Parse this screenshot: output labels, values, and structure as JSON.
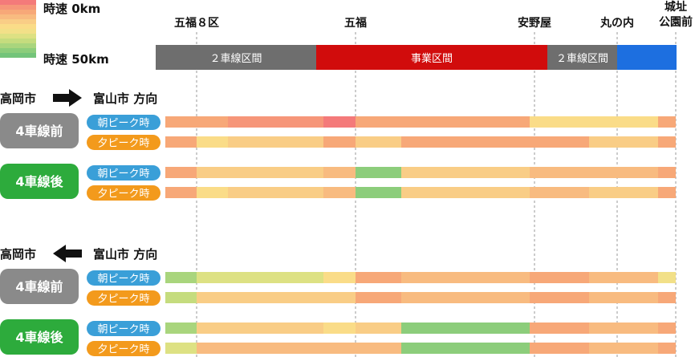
{
  "legend": {
    "top_label": "時速 0km",
    "bottom_label": "時速 50km",
    "colors": [
      "#f47a7a",
      "#f69679",
      "#f7a878",
      "#f8bb80",
      "#f9cd86",
      "#fadc88",
      "#f2e088",
      "#dde183",
      "#c5dc7e",
      "#a9d57d",
      "#8ccd7b",
      "#73c47a"
    ]
  },
  "stations": [
    {
      "label": "五福８区",
      "x_pos": 245
    },
    {
      "label": "五福",
      "x_pos": 443
    },
    {
      "label": "安野屋",
      "x_pos": 666
    },
    {
      "label": "丸の内",
      "x_pos": 769
    },
    {
      "label": "城址\n公園前",
      "x_pos": 842
    }
  ],
  "track_sections": [
    {
      "label": "２車線区間",
      "color": "#6e6e6e",
      "from": 0,
      "to": 200
    },
    {
      "label": "事業区間",
      "color": "#d10c0c",
      "from": 200,
      "to": 488
    },
    {
      "label": "２車線区間",
      "color": "#6e6e6e",
      "from": 488,
      "to": 575
    },
    {
      "label": "",
      "color": "#1d6fe0",
      "from": 575,
      "to": 649
    }
  ],
  "sections": [
    {
      "direction_from": "高岡市",
      "direction_to": "富山市 方向",
      "arrow": "right-arrow",
      "groups": [
        {
          "label": "4車線前",
          "color": "#8a8a8a",
          "rows": [
            {
              "label": "朝ピーク時",
              "color": "#3a9fd8",
              "speeds": [
                {
                  "from": 0,
                  "to": 78,
                  "color": "#f7a878"
                },
                {
                  "from": 78,
                  "to": 197,
                  "color": "#f69679"
                },
                {
                  "from": 197,
                  "to": 237,
                  "color": "#f47a7a"
                },
                {
                  "from": 237,
                  "to": 454,
                  "color": "#f7a878"
                },
                {
                  "from": 454,
                  "to": 528,
                  "color": "#fadc88"
                },
                {
                  "from": 528,
                  "to": 614,
                  "color": "#fadc88"
                },
                {
                  "from": 614,
                  "to": 636,
                  "color": "#f7a878"
                }
              ]
            },
            {
              "label": "夕ピーク時",
              "color": "#f39a1c",
              "speeds": [
                {
                  "from": 0,
                  "to": 39,
                  "color": "#f7a878"
                },
                {
                  "from": 39,
                  "to": 78,
                  "color": "#fadc88"
                },
                {
                  "from": 78,
                  "to": 197,
                  "color": "#f9cd86"
                },
                {
                  "from": 197,
                  "to": 237,
                  "color": "#f7a878"
                },
                {
                  "from": 237,
                  "to": 294,
                  "color": "#f9cd86"
                },
                {
                  "from": 294,
                  "to": 454,
                  "color": "#f7a878"
                },
                {
                  "from": 454,
                  "to": 528,
                  "color": "#f7a878"
                },
                {
                  "from": 528,
                  "to": 614,
                  "color": "#f9cd86"
                },
                {
                  "from": 614,
                  "to": 636,
                  "color": "#f7a878"
                }
              ]
            }
          ]
        },
        {
          "label": "4車線後",
          "color": "#2dab3c",
          "rows": [
            {
              "label": "朝ピーク時",
              "color": "#3a9fd8",
              "speeds": [
                {
                  "from": 0,
                  "to": 39,
                  "color": "#f7a878"
                },
                {
                  "from": 39,
                  "to": 197,
                  "color": "#f9cd86"
                },
                {
                  "from": 197,
                  "to": 237,
                  "color": "#f8bb80"
                },
                {
                  "from": 237,
                  "to": 294,
                  "color": "#8ccd7b"
                },
                {
                  "from": 294,
                  "to": 454,
                  "color": "#f9cd86"
                },
                {
                  "from": 454,
                  "to": 528,
                  "color": "#f8bb80"
                },
                {
                  "from": 528,
                  "to": 614,
                  "color": "#f8bb80"
                },
                {
                  "from": 614,
                  "to": 636,
                  "color": "#f7a878"
                }
              ]
            },
            {
              "label": "夕ピーク時",
              "color": "#f39a1c",
              "speeds": [
                {
                  "from": 0,
                  "to": 39,
                  "color": "#f7a878"
                },
                {
                  "from": 39,
                  "to": 78,
                  "color": "#fadc88"
                },
                {
                  "from": 78,
                  "to": 197,
                  "color": "#f9cd86"
                },
                {
                  "from": 197,
                  "to": 237,
                  "color": "#f8bb80"
                },
                {
                  "from": 237,
                  "to": 294,
                  "color": "#8ccd7b"
                },
                {
                  "from": 294,
                  "to": 454,
                  "color": "#f9cd86"
                },
                {
                  "from": 454,
                  "to": 528,
                  "color": "#f8bb80"
                },
                {
                  "from": 528,
                  "to": 614,
                  "color": "#f9cd86"
                },
                {
                  "from": 614,
                  "to": 636,
                  "color": "#f7a878"
                }
              ]
            }
          ]
        }
      ]
    },
    {
      "direction_from": "高岡市",
      "direction_to": "富山市 方向",
      "arrow": "left-arrow",
      "groups": [
        {
          "label": "4車線前",
          "color": "#8a8a8a",
          "rows": [
            {
              "label": "朝ピーク時",
              "color": "#3a9fd8",
              "speeds": [
                {
                  "from": 0,
                  "to": 39,
                  "color": "#a9d57d"
                },
                {
                  "from": 39,
                  "to": 197,
                  "color": "#dde183"
                },
                {
                  "from": 197,
                  "to": 237,
                  "color": "#fadc88"
                },
                {
                  "from": 237,
                  "to": 294,
                  "color": "#f7a878"
                },
                {
                  "from": 294,
                  "to": 454,
                  "color": "#f8bb80"
                },
                {
                  "from": 454,
                  "to": 528,
                  "color": "#f7a878"
                },
                {
                  "from": 528,
                  "to": 614,
                  "color": "#f8bb80"
                },
                {
                  "from": 614,
                  "to": 636,
                  "color": "#f2e088"
                }
              ]
            },
            {
              "label": "夕ピーク時",
              "color": "#f39a1c",
              "speeds": [
                {
                  "from": 0,
                  "to": 39,
                  "color": "#c5dc7e"
                },
                {
                  "from": 39,
                  "to": 197,
                  "color": "#f9cd86"
                },
                {
                  "from": 197,
                  "to": 237,
                  "color": "#f9cd86"
                },
                {
                  "from": 237,
                  "to": 294,
                  "color": "#f7a878"
                },
                {
                  "from": 294,
                  "to": 454,
                  "color": "#f8bb80"
                },
                {
                  "from": 454,
                  "to": 528,
                  "color": "#f7a878"
                },
                {
                  "from": 528,
                  "to": 614,
                  "color": "#f8bb80"
                },
                {
                  "from": 614,
                  "to": 636,
                  "color": "#f7a878"
                }
              ]
            }
          ]
        },
        {
          "label": "4車線後",
          "color": "#2dab3c",
          "rows": [
            {
              "label": "朝ピーク時",
              "color": "#3a9fd8",
              "speeds": [
                {
                  "from": 0,
                  "to": 39,
                  "color": "#a9d57d"
                },
                {
                  "from": 39,
                  "to": 197,
                  "color": "#f9cd86"
                },
                {
                  "from": 197,
                  "to": 237,
                  "color": "#fadc88"
                },
                {
                  "from": 237,
                  "to": 294,
                  "color": "#f9cd86"
                },
                {
                  "from": 294,
                  "to": 454,
                  "color": "#8ccd7b"
                },
                {
                  "from": 454,
                  "to": 528,
                  "color": "#f7a878"
                },
                {
                  "from": 528,
                  "to": 614,
                  "color": "#f8bb80"
                },
                {
                  "from": 614,
                  "to": 636,
                  "color": "#f7a878"
                }
              ]
            },
            {
              "label": "夕ピーク時",
              "color": "#f39a1c",
              "speeds": [
                {
                  "from": 0,
                  "to": 39,
                  "color": "#dde183"
                },
                {
                  "from": 39,
                  "to": 237,
                  "color": "#f8bb80"
                },
                {
                  "from": 237,
                  "to": 294,
                  "color": "#f8bb80"
                },
                {
                  "from": 294,
                  "to": 454,
                  "color": "#8ccd7b"
                },
                {
                  "from": 454,
                  "to": 528,
                  "color": "#f7a878"
                },
                {
                  "from": 528,
                  "to": 614,
                  "color": "#f8bb80"
                },
                {
                  "from": 614,
                  "to": 636,
                  "color": "#f7a878"
                }
              ]
            }
          ]
        }
      ]
    }
  ],
  "chart_data": {
    "type": "heatmap",
    "title": "",
    "xlabel": "",
    "ylabel": "",
    "color_scale": {
      "min_label": "時速 0km",
      "max_label": "時速 50km"
    },
    "categories": [
      "五福８区",
      "五福",
      "安野屋",
      "丸の内",
      "城址公園前"
    ],
    "series": [
      {
        "name": "高岡市→富山市 方向 4車線前 朝ピーク時"
      },
      {
        "name": "高岡市→富山市 方向 4車線前 夕ピーク時"
      },
      {
        "name": "高岡市→富山市 方向 4車線後 朝ピーク時"
      },
      {
        "name": "高岡市→富山市 方向 4車線後 夕ピーク時"
      },
      {
        "name": "富山市→高岡市 方向 4車線前 朝ピーク時"
      },
      {
        "name": "富山市→高岡市 方向 4車線前 夕ピーク時"
      },
      {
        "name": "富山市→高岡市 方向 4車線後 朝ピーク時"
      },
      {
        "name": "富山市→高岡市 方向 4車線後 夕ピーク時"
      }
    ]
  }
}
